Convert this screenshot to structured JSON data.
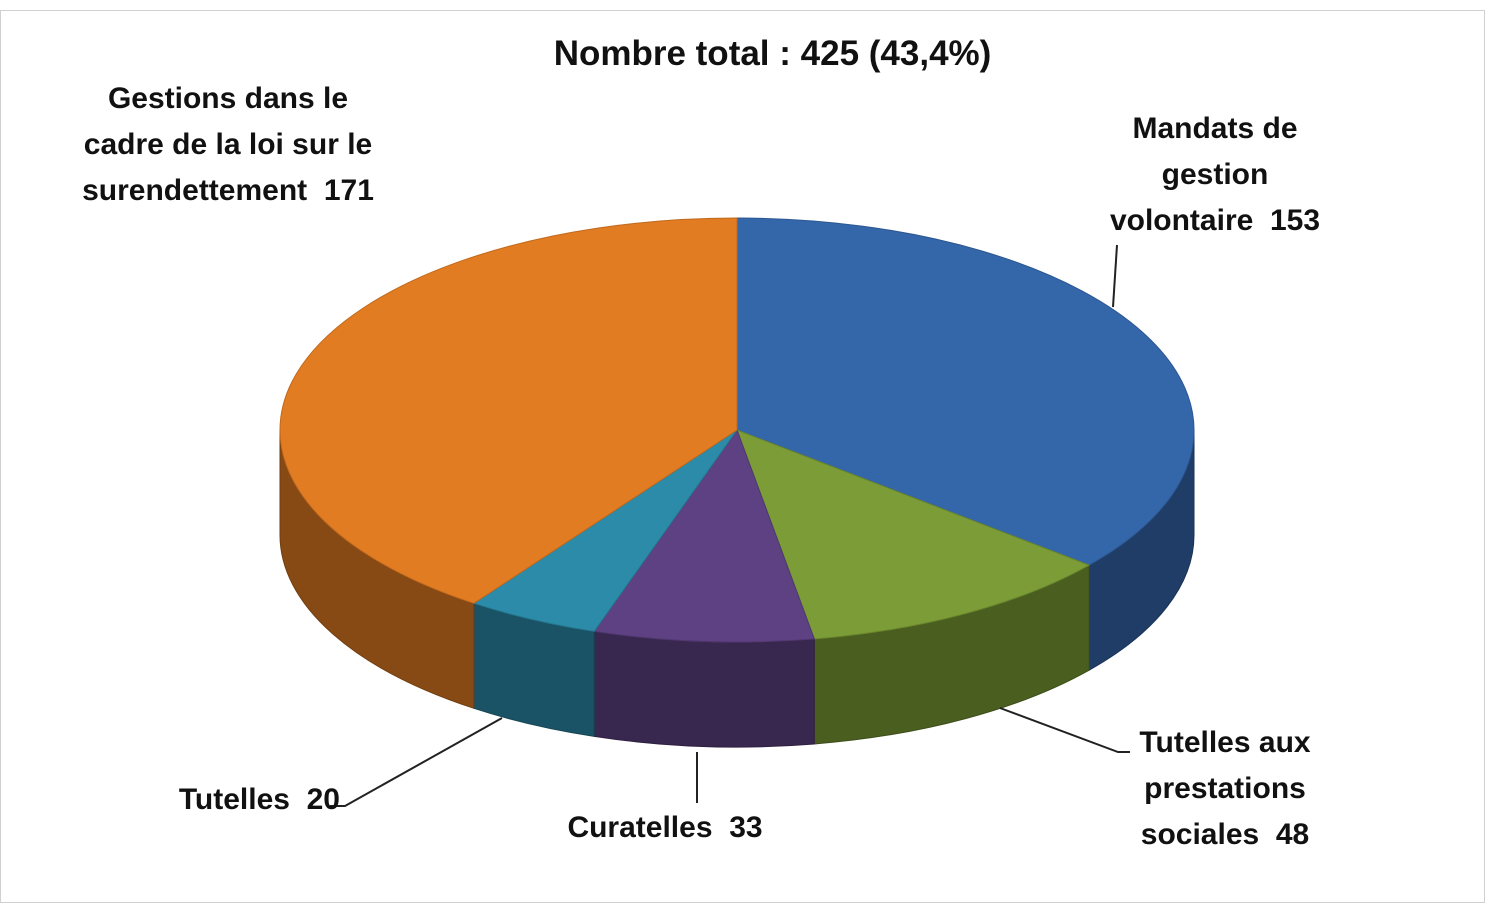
{
  "chart_data": {
    "type": "pie3d",
    "title": "Nombre total : 425 (43,4%)",
    "categories": [
      "Mandats de gestion volontaire",
      "Tutelles aux prestations sociales",
      "Curatelles",
      "Tutelles",
      "Gestions dans le cadre de la loi sur le surendettement"
    ],
    "values": [
      153,
      48,
      33,
      20,
      171
    ],
    "colors": [
      "#3466aa",
      "#7b9c36",
      "#5d4182",
      "#2b8ba8",
      "#e27c22"
    ]
  }
}
